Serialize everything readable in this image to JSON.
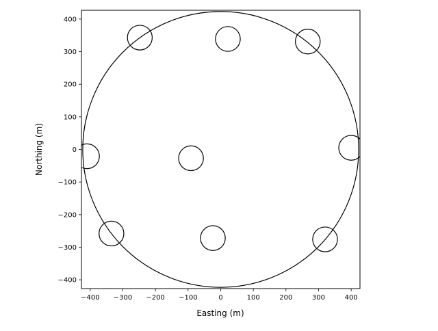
{
  "chart_data": {
    "type": "scatter",
    "title": "",
    "xlabel": "Easting (m)",
    "ylabel": "Northing (m)",
    "xlim": [
      -427,
      427
    ],
    "ylim": [
      -427,
      427
    ],
    "xticks": [
      -400,
      -300,
      -200,
      -100,
      0,
      100,
      200,
      300,
      400
    ],
    "yticks": [
      -400,
      -300,
      -200,
      -100,
      0,
      100,
      200,
      300,
      400
    ],
    "grid": false,
    "boundary": {
      "center": [
        0,
        0
      ],
      "radius": 423
    },
    "turbine_radius": 38,
    "points": [
      {
        "x": -248,
        "y": 343
      },
      {
        "x": 22,
        "y": 339
      },
      {
        "x": 267,
        "y": 331
      },
      {
        "x": -410,
        "y": -21
      },
      {
        "x": -91,
        "y": -27
      },
      {
        "x": 400,
        "y": 5
      },
      {
        "x": -335,
        "y": -258
      },
      {
        "x": -24,
        "y": -272
      },
      {
        "x": 320,
        "y": -276
      }
    ],
    "colors": {
      "line": "#000000",
      "background": "#ffffff"
    }
  }
}
